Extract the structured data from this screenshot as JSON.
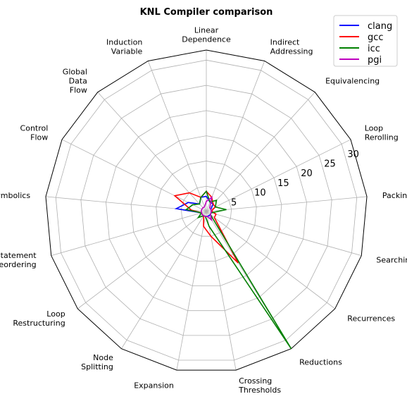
{
  "chart_data": {
    "type": "radar",
    "title": "KNL Compiler comparison",
    "categories": [
      "Linear\nDependence",
      "Indirect\nAddressing",
      "Equivalencing",
      "Loop\nRerolling",
      "Packing",
      "Searching",
      "Recurrences",
      "Reductions",
      "Crossing\nThresholds",
      "Expansion",
      "Node\nSplitting",
      "Loop\nRestructuring",
      "Statement\nReordering",
      "Symbolics",
      "Control\nFlow",
      "Global\nData\nFlow",
      "Induction\nVariable"
    ],
    "rlim": [
      0,
      32
    ],
    "rticks": [
      5,
      10,
      15,
      20,
      25,
      30
    ],
    "rtick_labels": [
      "5",
      "10",
      "15",
      "20",
      "25",
      "30"
    ],
    "grid": true,
    "legend_position": "top-right",
    "series": [
      {
        "name": "clang",
        "color": "#0000ff",
        "values": [
          3,
          2,
          2,
          1,
          1,
          1,
          1,
          1,
          1,
          1,
          1,
          1,
          1,
          6,
          4,
          2,
          3
        ]
      },
      {
        "name": "gcc",
        "color": "#ff0000",
        "values": [
          4,
          3,
          2,
          2,
          1,
          2,
          2,
          12,
          5,
          3,
          1,
          1,
          1,
          3,
          7,
          5,
          3
        ]
      },
      {
        "name": "icc",
        "color": "#008000",
        "values": [
          4,
          2,
          3,
          2,
          4,
          1,
          1,
          32,
          3,
          1,
          1,
          2,
          1,
          4,
          3,
          2,
          3
        ]
      },
      {
        "name": "pgi",
        "color": "#bf00bf",
        "values": [
          2,
          3,
          1,
          1,
          1,
          1,
          1,
          2,
          1,
          1,
          1,
          1,
          1,
          1,
          1,
          1,
          1
        ]
      }
    ]
  }
}
